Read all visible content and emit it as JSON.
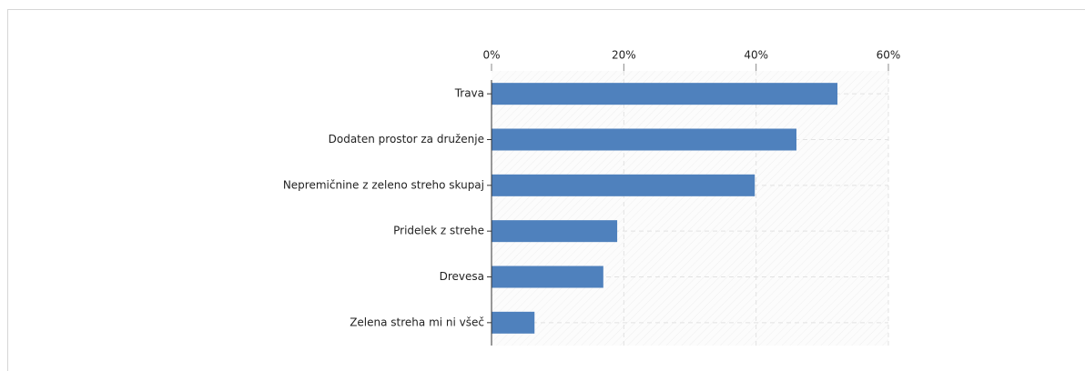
{
  "chart_data": {
    "type": "bar",
    "orientation": "horizontal",
    "categories": [
      "Trava",
      "Dodaten prostor za druženje",
      "Nepremičnine z zeleno streho skupaj",
      "Pridelek z strehe",
      "Drevesa",
      "Zelena streha mi ni všeč"
    ],
    "values": [
      52.3,
      46.1,
      39.8,
      19.0,
      16.9,
      6.5
    ],
    "color": "#4f81bd",
    "xlim": [
      0,
      60
    ],
    "xticks": [
      {
        "value": 0,
        "label": "0%"
      },
      {
        "value": 20,
        "label": "20%"
      },
      {
        "value": 40,
        "label": "40%"
      },
      {
        "value": 60,
        "label": "60%"
      }
    ],
    "grid": true
  }
}
